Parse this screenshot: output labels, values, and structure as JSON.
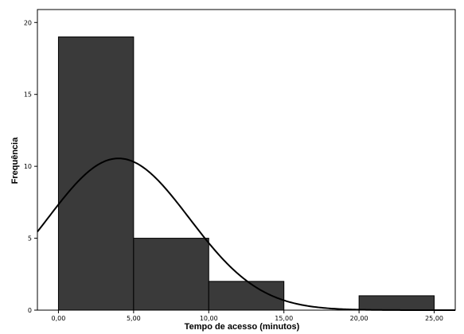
{
  "chart_data": {
    "type": "bar",
    "subtype": "histogram",
    "xlabel": "Tempo de acesso (minutos)",
    "ylabel": "Frequência",
    "x_ticks": [
      "0,00",
      "5,00",
      "10,00",
      "15,00",
      "20,00",
      "25,00"
    ],
    "x_tick_values": [
      0,
      5,
      10,
      15,
      20,
      25
    ],
    "y_ticks": [
      "0",
      "5",
      "10",
      "15",
      "20"
    ],
    "y_tick_values": [
      0,
      5,
      10,
      15,
      20
    ],
    "xlim": [
      -1.4,
      26.4
    ],
    "ylim": [
      0,
      20.9
    ],
    "bins": [
      {
        "from": 0,
        "to": 5,
        "count": 19
      },
      {
        "from": 5,
        "to": 10,
        "count": 5
      },
      {
        "from": 10,
        "to": 15,
        "count": 2
      },
      {
        "from": 15,
        "to": 20,
        "count": 0
      },
      {
        "from": 20,
        "to": 25,
        "count": 1
      }
    ],
    "normal_curve": {
      "mean": 4.0,
      "std_dev": 4.7,
      "peak": 10.55
    },
    "grid": false,
    "colors": {
      "bar_fill": "#3a3a3a",
      "bar_stroke": "#000000",
      "curve": "#000000",
      "background": "#ffffff"
    }
  }
}
